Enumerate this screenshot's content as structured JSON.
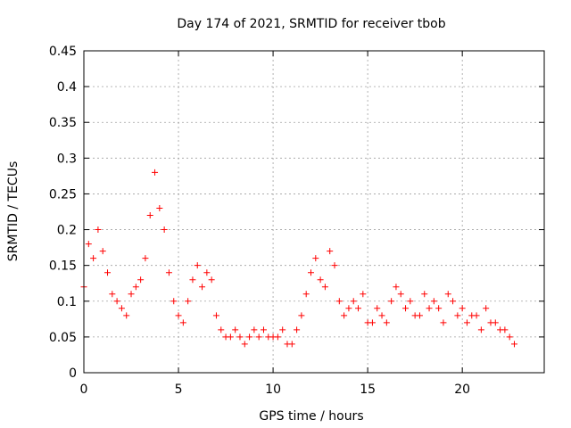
{
  "chart_data": {
    "type": "scatter",
    "title": "Day 174 of 2021, SRMTID for receiver tbob",
    "xlabel": "GPS time / hours",
    "ylabel": "SRMTID / TECUs",
    "xlim": [
      0,
      24.33
    ],
    "ylim": [
      0,
      0.45
    ],
    "x_ticks": [
      0,
      5,
      10,
      15,
      20
    ],
    "x_tick_labels": [
      "0",
      "5",
      "10",
      "15",
      "20"
    ],
    "y_ticks": [
      0,
      0.05,
      0.1,
      0.15,
      0.2,
      0.25,
      0.3,
      0.35,
      0.4,
      0.45
    ],
    "y_tick_labels": [
      "0",
      "0.05",
      "0.1",
      "0.15",
      "0.2",
      "0.25",
      "0.3",
      "0.35",
      "0.4",
      "0.45"
    ],
    "grid": true,
    "marker": "plus",
    "series": [
      {
        "name": "SRMTID",
        "color": "#ff0000",
        "x": [
          0.0,
          0.25,
          0.5,
          0.75,
          1.0,
          1.25,
          1.5,
          1.75,
          2.0,
          2.25,
          2.5,
          2.75,
          3.0,
          3.25,
          3.5,
          3.75,
          4.0,
          4.25,
          4.5,
          4.75,
          5.0,
          5.25,
          5.5,
          5.75,
          6.0,
          6.25,
          6.5,
          6.75,
          7.0,
          7.25,
          7.5,
          7.75,
          8.0,
          8.25,
          8.5,
          8.75,
          9.0,
          9.25,
          9.5,
          9.75,
          10.0,
          10.25,
          10.5,
          10.75,
          11.0,
          11.25,
          11.5,
          11.75,
          12.0,
          12.25,
          12.5,
          12.75,
          13.0,
          13.25,
          13.5,
          13.75,
          14.0,
          14.25,
          14.5,
          14.75,
          15.0,
          15.25,
          15.5,
          15.75,
          16.0,
          16.25,
          16.5,
          16.75,
          17.0,
          17.25,
          17.5,
          17.75,
          18.0,
          18.25,
          18.5,
          18.75,
          19.0,
          19.25,
          19.5,
          19.75,
          20.0,
          20.25,
          20.5,
          20.75,
          21.0,
          21.25,
          21.5,
          21.75,
          22.0,
          22.25,
          22.5,
          22.75
        ],
        "y": [
          0.12,
          0.18,
          0.16,
          0.2,
          0.17,
          0.14,
          0.11,
          0.1,
          0.09,
          0.08,
          0.11,
          0.12,
          0.13,
          0.16,
          0.22,
          0.28,
          0.23,
          0.2,
          0.14,
          0.1,
          0.08,
          0.07,
          0.1,
          0.13,
          0.15,
          0.12,
          0.14,
          0.13,
          0.08,
          0.06,
          0.05,
          0.05,
          0.06,
          0.05,
          0.04,
          0.05,
          0.06,
          0.05,
          0.06,
          0.05,
          0.05,
          0.05,
          0.06,
          0.04,
          0.04,
          0.06,
          0.08,
          0.11,
          0.14,
          0.16,
          0.13,
          0.12,
          0.17,
          0.15,
          0.1,
          0.08,
          0.09,
          0.1,
          0.09,
          0.11,
          0.07,
          0.07,
          0.09,
          0.08,
          0.07,
          0.1,
          0.12,
          0.11,
          0.09,
          0.1,
          0.08,
          0.08,
          0.11,
          0.09,
          0.1,
          0.09,
          0.07,
          0.11,
          0.1,
          0.08,
          0.09,
          0.07,
          0.08,
          0.08,
          0.06,
          0.09,
          0.07,
          0.07,
          0.06,
          0.06,
          0.05,
          0.04
        ]
      }
    ]
  }
}
